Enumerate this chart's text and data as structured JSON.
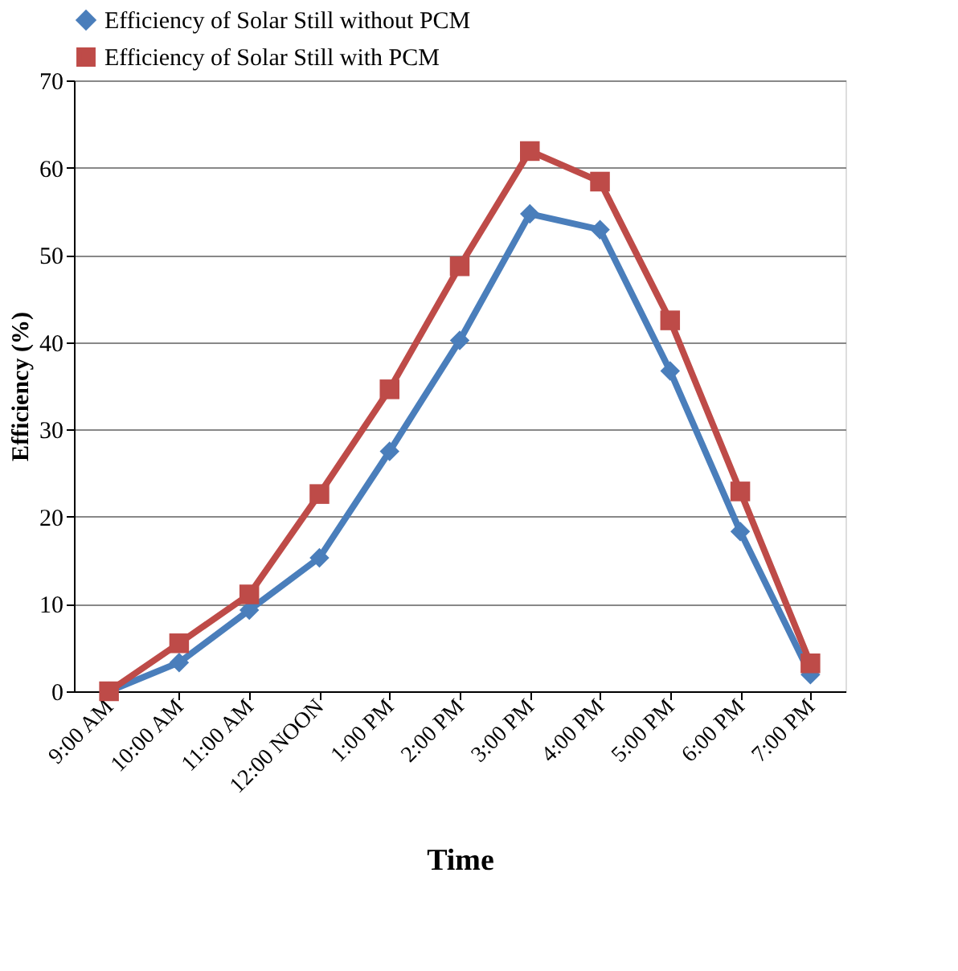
{
  "chart_data": {
    "type": "line",
    "xlabel": "Time",
    "ylabel": "Efficiency (%)",
    "categories": [
      "9:00 AM",
      "10:00 AM",
      "11:00 AM",
      "12:00 NOON",
      "1:00 PM",
      "2:00 PM",
      "3:00 PM",
      "4:00 PM",
      "5:00 PM",
      "6:00 PM",
      "7:00 PM"
    ],
    "series": [
      {
        "name": "Efficiency of Solar Still without PCM",
        "color": "#4a7ebb",
        "marker": "diamond",
        "values": [
          0,
          3.3,
          9.3,
          15.3,
          27.5,
          40.2,
          54.7,
          52.9,
          36.7,
          18.3,
          1.9
        ]
      },
      {
        "name": "Efficiency of Solar Still with PCM",
        "color": "#be4b48",
        "marker": "square",
        "values": [
          0,
          5.5,
          11.1,
          22.6,
          34.6,
          48.7,
          61.9,
          58.4,
          42.5,
          22.9,
          3.2
        ]
      }
    ],
    "ylim": [
      0,
      70
    ],
    "yticks": [
      0,
      10,
      20,
      30,
      40,
      50,
      60,
      70
    ],
    "grid": "y",
    "legend": "top",
    "line_style": "solid"
  }
}
